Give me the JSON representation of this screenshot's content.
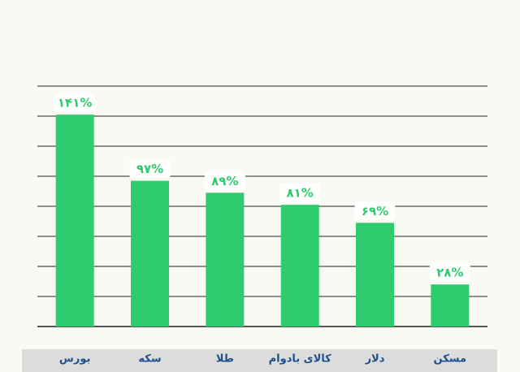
{
  "chart_data": {
    "type": "bar",
    "categories": [
      "بورس",
      "سکه",
      "طلا",
      "کالای بادوام",
      "دلار",
      "مسکن"
    ],
    "values": [
      141,
      97,
      89,
      81,
      69,
      28
    ],
    "value_labels": [
      "۱۴۱%",
      "۹۷%",
      "۸۹%",
      "۸۱%",
      "۶۹%",
      "۲۸%"
    ],
    "color": "#2ecc6e",
    "ylim": [
      0,
      160
    ],
    "gridlines": [
      0,
      20,
      40,
      60,
      80,
      100,
      120,
      140,
      160
    ],
    "grid": true
  }
}
